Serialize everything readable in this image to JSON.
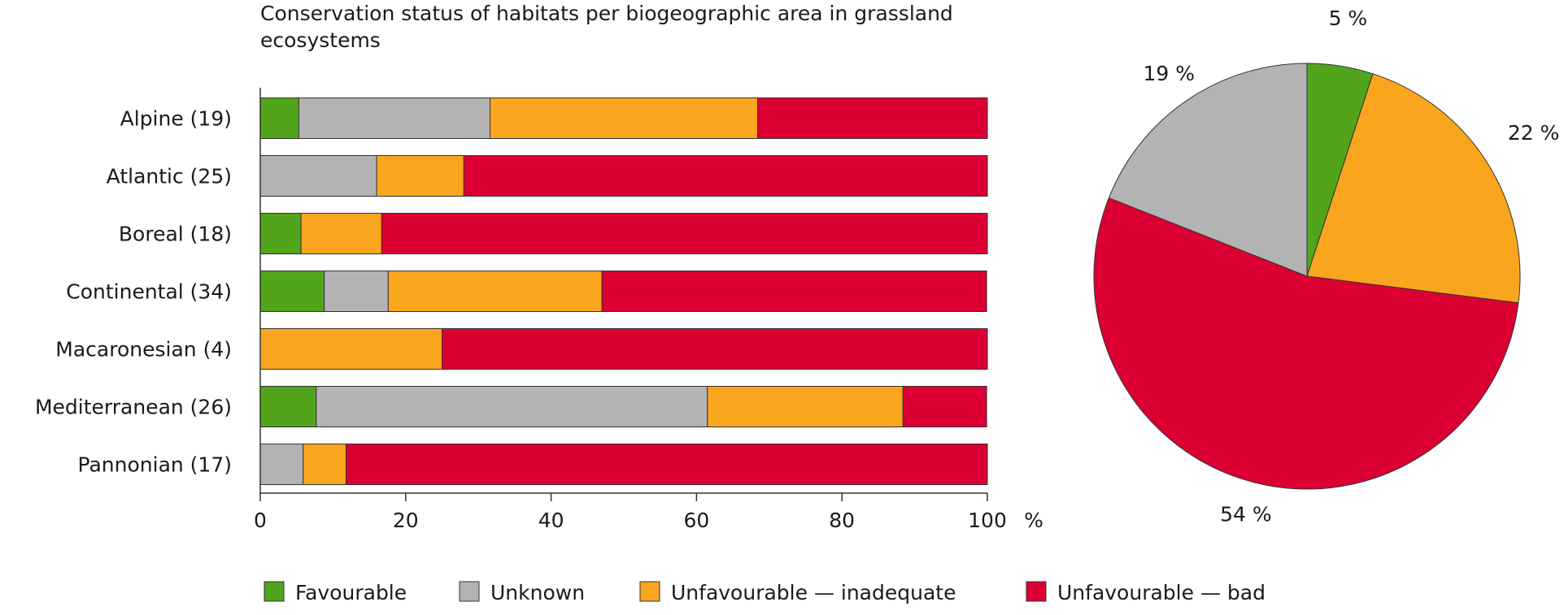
{
  "chart_data": [
    {
      "type": "bar",
      "orientation": "horizontal",
      "stacked": true,
      "title": "Conservation status of habitats per biogeographic area in grassland ecosystems",
      "xlabel": "%",
      "ylabel": "",
      "xlim": [
        0,
        100
      ],
      "xticks": [
        "0",
        "20",
        "40",
        "60",
        "80",
        "100"
      ],
      "grid": false,
      "legend_position": "bottom",
      "categories": [
        "Alpine (19)",
        "Atlantic (25)",
        "Boreal (18)",
        "Continental (34)",
        "Macaronesian (4)",
        "Mediterranean (26)",
        "Pannonian (17)"
      ],
      "series": [
        {
          "name": "Favourable",
          "color": "#52a51b",
          "values": [
            5.3,
            0,
            5.6,
            8.8,
            0,
            7.7,
            0
          ]
        },
        {
          "name": "Unknown",
          "color": "#b3b3b3",
          "values": [
            26.3,
            16.0,
            0,
            8.8,
            0,
            53.8,
            5.9
          ]
        },
        {
          "name": "Unfavourable — inadequate",
          "color": "#f9a51e",
          "values": [
            36.8,
            12.0,
            11.1,
            29.4,
            25.0,
            26.9,
            5.9
          ]
        },
        {
          "name": "Unfavourable — bad",
          "color": "#dc0032",
          "values": [
            31.6,
            72.0,
            83.3,
            52.9,
            75.0,
            11.5,
            88.2
          ]
        }
      ]
    },
    {
      "type": "pie",
      "title": "",
      "start_angle_deg": 0,
      "direction": "clockwise",
      "slices": [
        {
          "label": "5 %",
          "value": 5,
          "color": "#52a51b"
        },
        {
          "label": "22 %",
          "value": 22,
          "color": "#f9a51e"
        },
        {
          "label": "54 %",
          "value": 54,
          "color": "#dc0032"
        },
        {
          "label": "19 %",
          "value": 19,
          "color": "#b3b3b3"
        }
      ]
    }
  ]
}
